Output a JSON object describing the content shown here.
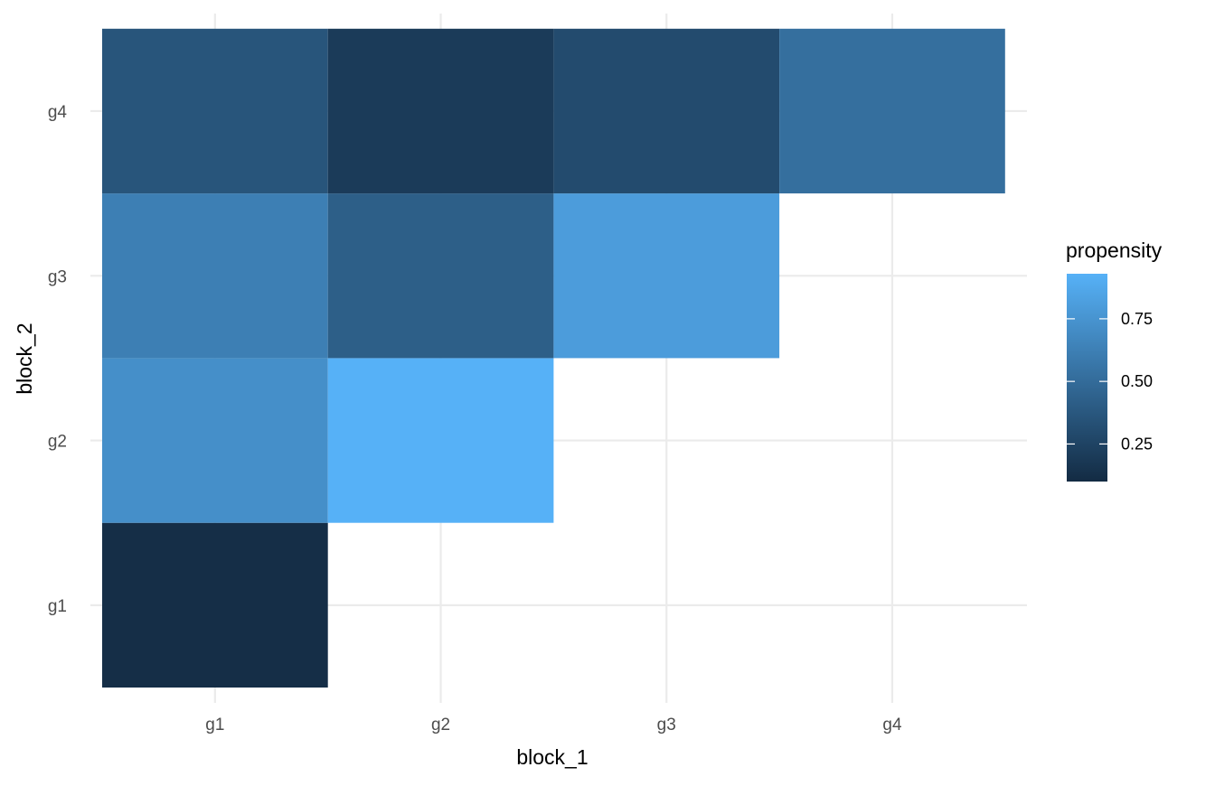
{
  "chart_data": {
    "type": "heatmap",
    "x_categories": [
      "g1",
      "g2",
      "g3",
      "g4"
    ],
    "y_categories": [
      "g1",
      "g2",
      "g3",
      "g4"
    ],
    "xlabel": "block_1",
    "ylabel": "block_2",
    "cells": [
      {
        "x": "g1",
        "y": "g1",
        "value": 0.12
      },
      {
        "x": "g1",
        "y": "g2",
        "value": 0.72
      },
      {
        "x": "g2",
        "y": "g2",
        "value": 0.93
      },
      {
        "x": "g1",
        "y": "g3",
        "value": 0.62
      },
      {
        "x": "g2",
        "y": "g3",
        "value": 0.42
      },
      {
        "x": "g3",
        "y": "g3",
        "value": 0.8
      },
      {
        "x": "g1",
        "y": "g4",
        "value": 0.36
      },
      {
        "x": "g2",
        "y": "g4",
        "value": 0.2
      },
      {
        "x": "g3",
        "y": "g4",
        "value": 0.3
      },
      {
        "x": "g4",
        "y": "g4",
        "value": 0.52
      }
    ],
    "legend": {
      "title": "propensity",
      "position": "right",
      "min": 0.1,
      "max": 0.93,
      "breaks": [
        0.25,
        0.5,
        0.75
      ],
      "break_labels": [
        "0.25",
        "0.50",
        "0.75"
      ],
      "low_color": "#132B43",
      "high_color": "#56B1F7"
    },
    "grid": true
  }
}
